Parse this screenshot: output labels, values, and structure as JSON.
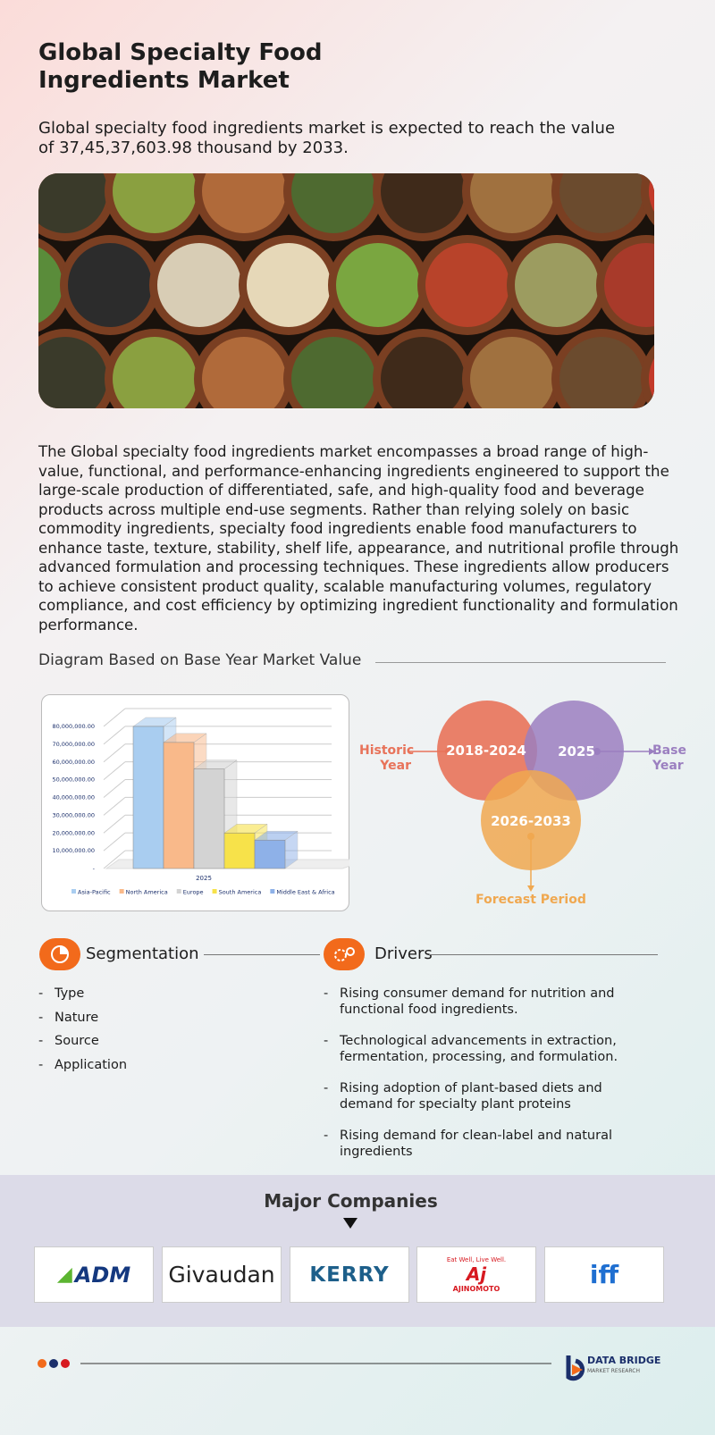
{
  "header": {
    "title": "Global Specialty Food Ingredients Market",
    "subtitle": "Global specialty food ingredients market is expected to reach the value of 37,45,37,603.98 thousand by 2033."
  },
  "description": "The Global specialty food ingredients market encompasses a broad range of high-value, functional, and performance-enhancing ingredients engineered to support the large-scale production of differentiated, safe, and high-quality food and beverage products across multiple end-use segments. Rather than relying solely on basic commodity ingredients, specialty food ingredients enable food manufacturers to enhance taste, texture, stability, shelf life, appearance, and nutritional profile through advanced formulation and processing techniques. These ingredients allow producers to achieve consistent product quality, scalable manufacturing volumes, regulatory compliance, and cost efficiency by optimizing ingredient functionality and formulation performance.",
  "diagram_heading": "Diagram Based on Base Year Market Value",
  "chart_data": {
    "type": "bar",
    "categories": [
      "2025"
    ],
    "series": [
      {
        "name": "Asia-Pacific",
        "color": "#a9cdf0",
        "values": [
          80000000
        ]
      },
      {
        "name": "North America",
        "color": "#f9b98a",
        "values": [
          71000000
        ]
      },
      {
        "name": "Europe",
        "color": "#d3d3d3",
        "values": [
          56000000
        ]
      },
      {
        "name": "South America",
        "color": "#f7e24a",
        "values": [
          20000000
        ]
      },
      {
        "name": "Middle East & Africa",
        "color": "#8eb1e8",
        "values": [
          16000000
        ]
      }
    ],
    "ylim": [
      0,
      80000000
    ],
    "yticks": [
      {
        "value": 0,
        "label": "-"
      },
      {
        "value": 10000000,
        "label": "10,000,000.00"
      },
      {
        "value": 20000000,
        "label": "20,000,000.00"
      },
      {
        "value": 30000000,
        "label": "30,000,000.00"
      },
      {
        "value": 40000000,
        "label": "40,000,000.00"
      },
      {
        "value": 50000000,
        "label": "50,000,000.00"
      },
      {
        "value": 60000000,
        "label": "60,000,000.00"
      },
      {
        "value": 70000000,
        "label": "70,000,000.00"
      },
      {
        "value": 80000000,
        "label": "80,000,000.00"
      }
    ],
    "grid": true
  },
  "timeline": {
    "historic": "2018-2024",
    "base": "2025",
    "forecast": "2026-2033",
    "historic_label": "Historic Year",
    "base_label": "Base Year",
    "forecast_label": "Forecast Period"
  },
  "segmentation": {
    "title": "Segmentation",
    "items": [
      "Type",
      "Nature",
      "Source",
      "Application"
    ]
  },
  "drivers": {
    "title": "Drivers",
    "items": [
      "Rising consumer demand for nutrition and functional food ingredients.",
      "Technological advancements in extraction, fermentation, processing, and formulation.",
      "Rising adoption of plant-based diets and demand for specialty plant proteins",
      "Rising demand for clean-label and natural ingredients"
    ]
  },
  "companies": {
    "title": "Major Companies",
    "logos": [
      "ADM",
      "Givaudan",
      "KERRY",
      "Eat Well, Live Well.",
      "AJINOMOTO",
      "iff"
    ]
  },
  "footer": {
    "brand": "DATA BRIDGE",
    "tagline": "MARKET RESEARCH"
  }
}
